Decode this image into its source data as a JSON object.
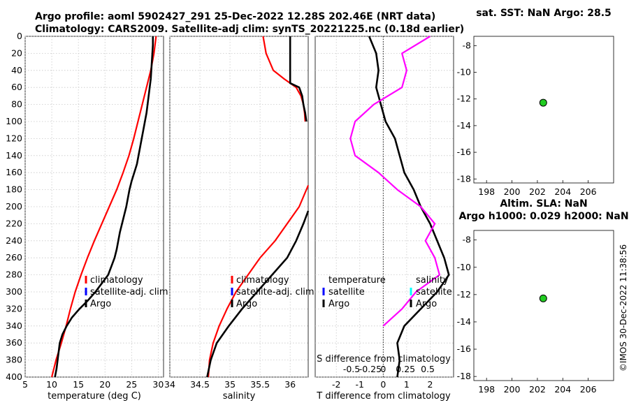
{
  "header": {
    "line1": "Argo profile: aoml 5902427_291 25-Dec-2022 12.28S 202.46E (NRT data)",
    "line2": "Climatology: CARS2009. Satellite-adj clim: synTS_20221225.nc (0.18d earlier)"
  },
  "timestamp": "©IMOS 30-Dec-2022 11:38:56",
  "colors": {
    "climatology": "#ff0000",
    "satellite": "#0000ff",
    "argo": "#000000",
    "salinity_diff": "#ff00ff",
    "satellite_s": "#00ffff",
    "marker": "#22cc22"
  },
  "chart_data": [
    {
      "id": "temperature",
      "type": "line",
      "xlabel": "temperature (deg C)",
      "xlim": [
        5,
        31
      ],
      "ylim": [
        0,
        400
      ],
      "xticks": [
        "5",
        "10",
        "15",
        "20",
        "25",
        "30"
      ],
      "yticks": [
        "0",
        "20",
        "40",
        "60",
        "80",
        "100",
        "120",
        "140",
        "160",
        "180",
        "200",
        "220",
        "240",
        "260",
        "280",
        "300",
        "320",
        "340",
        "360",
        "380",
        "400"
      ],
      "legend": [
        "climatology",
        "satellite-adj. clim",
        "Argo"
      ],
      "series": [
        {
          "name": "climatology",
          "color": "#ff0000",
          "depth": [
            0,
            20,
            40,
            60,
            80,
            100,
            120,
            140,
            160,
            180,
            200,
            220,
            240,
            260,
            280,
            300,
            320,
            340,
            360,
            380,
            400
          ],
          "values": [
            29.6,
            29.2,
            28.6,
            27.8,
            27.0,
            26.2,
            25.4,
            24.5,
            23.4,
            22.2,
            20.8,
            19.4,
            18.0,
            16.7,
            15.5,
            14.4,
            13.5,
            12.7,
            11.8,
            10.8,
            10.0
          ]
        },
        {
          "name": "Argo",
          "color": "#000000",
          "depth": [
            0,
            10,
            20,
            30,
            40,
            50,
            60,
            70,
            80,
            90,
            100,
            110,
            120,
            130,
            140,
            150,
            160,
            170,
            180,
            190,
            200,
            210,
            220,
            230,
            240,
            250,
            260,
            270,
            280,
            290,
            300,
            310,
            320,
            330,
            340,
            350,
            360,
            370,
            380,
            390,
            400
          ],
          "values": [
            29.0,
            29.0,
            28.9,
            28.8,
            28.7,
            28.6,
            28.4,
            28.2,
            28.0,
            27.8,
            27.5,
            27.2,
            26.9,
            26.6,
            26.3,
            26.0,
            25.5,
            25.0,
            24.6,
            24.3,
            24.0,
            23.6,
            23.2,
            22.8,
            22.5,
            22.2,
            21.8,
            21.2,
            20.6,
            19.4,
            18.2,
            16.8,
            15.2,
            13.8,
            12.8,
            12.0,
            11.5,
            11.3,
            11.1,
            10.9,
            10.6
          ]
        }
      ]
    },
    {
      "id": "salinity",
      "type": "line",
      "xlabel": "salinity",
      "xlim": [
        34,
        36.3
      ],
      "ylim": [
        0,
        400
      ],
      "xticks": [
        "34",
        "34.5",
        "35",
        "35.5",
        "36"
      ],
      "legend": [
        "climatology",
        "satellite-adj. clim",
        "Argo"
      ],
      "series": [
        {
          "name": "climatology",
          "color": "#ff0000",
          "depth": [
            0,
            20,
            40,
            50,
            60,
            70,
            80,
            90,
            100
          ],
          "values": [
            35.55,
            35.6,
            35.72,
            35.9,
            36.1,
            36.18,
            36.22,
            36.24,
            36.25
          ]
        },
        {
          "name": "climatology-deep",
          "color": "#ff0000",
          "depth": [
            175,
            200,
            220,
            240,
            260,
            280,
            300,
            320,
            340,
            360,
            380,
            400
          ],
          "values": [
            36.3,
            36.15,
            35.95,
            35.75,
            35.5,
            35.3,
            35.1,
            34.95,
            34.82,
            34.72,
            34.66,
            34.64
          ]
        },
        {
          "name": "Argo",
          "color": "#000000",
          "depth": [
            0,
            20,
            40,
            55,
            60,
            70,
            80,
            90,
            100
          ],
          "values": [
            36.0,
            36.0,
            36.0,
            36.0,
            36.15,
            36.2,
            36.22,
            36.25,
            36.27
          ]
        },
        {
          "name": "Argo-deep",
          "color": "#000000",
          "depth": [
            205,
            220,
            240,
            260,
            280,
            300,
            320,
            340,
            360,
            380,
            400
          ],
          "values": [
            36.3,
            36.22,
            36.1,
            35.95,
            35.7,
            35.45,
            35.2,
            34.98,
            34.78,
            34.68,
            34.62
          ]
        }
      ]
    },
    {
      "id": "difference",
      "type": "line",
      "xlabel": "T difference from climatology",
      "xlim": [
        -2.9,
        3.0
      ],
      "ylim": [
        0,
        400
      ],
      "xticks": [
        "-2",
        "-1",
        "0",
        "1",
        "2"
      ],
      "top_axis_label": "S difference from climatology",
      "top_ticks": [
        "-0.5",
        "-0.25",
        "0",
        "0.25",
        "0.5"
      ],
      "legend_left": [
        "temperature",
        "satellite",
        "Argo"
      ],
      "legend_right": [
        "salinity",
        "satellite",
        "Argo"
      ],
      "series": [
        {
          "name": "T difference",
          "color": "#000000",
          "depth": [
            0,
            20,
            40,
            60,
            80,
            100,
            120,
            140,
            160,
            180,
            200,
            220,
            240,
            260,
            280,
            300,
            320,
            340,
            360,
            380,
            400
          ],
          "values": [
            -0.6,
            -0.3,
            -0.2,
            -0.3,
            -0.1,
            0.1,
            0.5,
            0.7,
            0.9,
            1.3,
            1.6,
            2.0,
            2.3,
            2.6,
            2.8,
            2.3,
            1.6,
            0.9,
            0.6,
            0.7,
            0.6
          ]
        },
        {
          "name": "S difference",
          "color": "#ff00ff",
          "depth": [
            0,
            20,
            40,
            60,
            80,
            100,
            120,
            140,
            160,
            180,
            200,
            220,
            240,
            260,
            280,
            300,
            320,
            340,
            360,
            380,
            400
          ],
          "values": [
            0.5,
            0.2,
            0.25,
            0.2,
            -0.1,
            -0.3,
            -0.35,
            -0.3,
            -0.05,
            0.15,
            0.4,
            0.55,
            0.45,
            0.55,
            0.6,
            0.35,
            0.2,
            0.0,
            null,
            null,
            null
          ]
        }
      ]
    },
    {
      "id": "sst_map",
      "type": "scatter",
      "title": "sat. SST: NaN Argo: 28.5",
      "xlim": [
        197,
        208
      ],
      "ylim": [
        -18.3,
        -7.3
      ],
      "xticks": [
        "198",
        "200",
        "202",
        "204",
        "206"
      ],
      "yticks": [
        "-8",
        "-10",
        "-12",
        "-14",
        "-16",
        "-18"
      ],
      "points": [
        {
          "x": 202.46,
          "y": -12.28
        }
      ]
    },
    {
      "id": "sla_map",
      "type": "scatter",
      "title": "Altim. SLA: NaN",
      "subtitle": "Argo h1000: 0.029 h2000: NaN",
      "xlim": [
        197,
        208
      ],
      "ylim": [
        -18.3,
        -7.3
      ],
      "xticks": [
        "198",
        "200",
        "202",
        "204",
        "206"
      ],
      "yticks": [
        "-8",
        "-10",
        "-12",
        "-14",
        "-16",
        "-18"
      ],
      "points": [
        {
          "x": 202.46,
          "y": -12.28
        }
      ]
    }
  ]
}
